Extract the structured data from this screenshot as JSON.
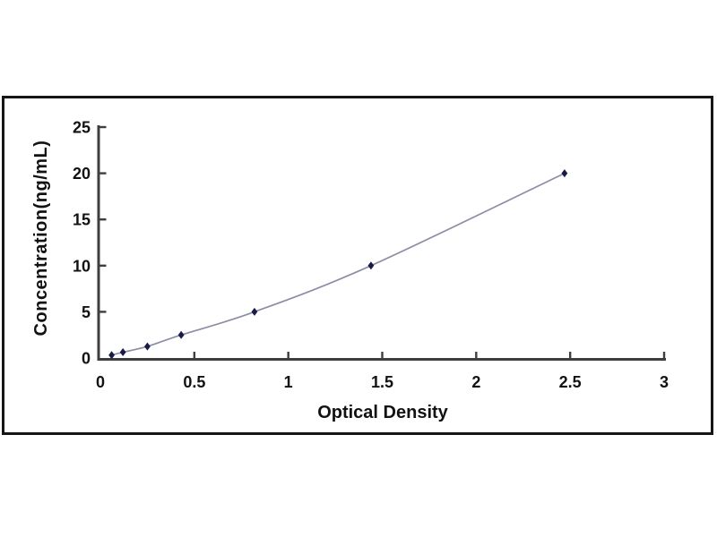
{
  "figure": {
    "kind": "elisa-standard-curve",
    "x_axis_title": "Optical Density",
    "y_axis_title": "Concentration(ng/mL)"
  },
  "chart_data": {
    "type": "line",
    "title": "",
    "xlabel": "Optical Density",
    "ylabel": "Concentration(ng/mL)",
    "x": [
      0.06,
      0.12,
      0.25,
      0.43,
      0.82,
      1.44,
      2.47
    ],
    "y": [
      0.312,
      0.625,
      1.25,
      2.5,
      5,
      10,
      20
    ],
    "xlim": [
      0,
      3
    ],
    "ylim": [
      0,
      25
    ],
    "xticks": [
      "0",
      "0.5",
      "1",
      "1.5",
      "2",
      "2.5",
      "3"
    ],
    "xtick_values": [
      0,
      0.5,
      1,
      1.5,
      2,
      2.5,
      3
    ],
    "yticks": [
      "0",
      "5",
      "10",
      "15",
      "20",
      "25"
    ],
    "ytick_values": [
      0,
      5,
      10,
      15,
      20,
      25
    ],
    "grid": false,
    "legend_position": "none",
    "marker": "diamond",
    "colors": {
      "line": "#8b8ea5",
      "marker": "#1a1a46",
      "axis": "#3e3e3e",
      "text": "#121212",
      "frame_border": "#161616",
      "background": "#ffffff"
    }
  }
}
